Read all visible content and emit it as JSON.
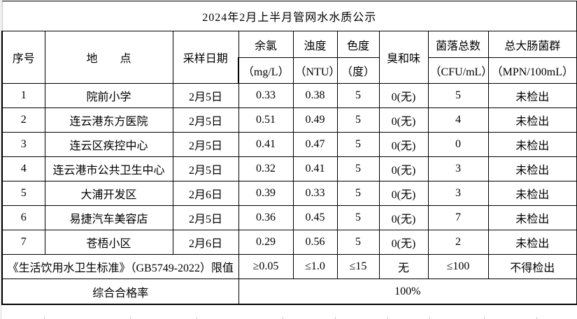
{
  "title": "2024年2月上半月管网水水质公示",
  "columns": [
    {
      "label": "序号"
    },
    {
      "label": "地　　点"
    },
    {
      "label": "采样日期"
    },
    {
      "label": "余氯",
      "unit": "（mg/L）"
    },
    {
      "label": "浊度",
      "unit": "（NTU）"
    },
    {
      "label": "色度",
      "unit": "（度）"
    },
    {
      "label": "臭和味"
    },
    {
      "label": "菌落总数",
      "unit": "（CFU/mL）"
    },
    {
      "label": "总大肠菌群",
      "unit": "（MPN/100mL）"
    }
  ],
  "rows": [
    {
      "no": "1",
      "location": "院前小学",
      "date": "2月5日",
      "chlorine": "0.33",
      "turbidity": "0.38",
      "color": "5",
      "odor": "0(无)",
      "bacteria": "5",
      "coliform": "未检出"
    },
    {
      "no": "2",
      "location": "连云港东方医院",
      "date": "2月5日",
      "chlorine": "0.51",
      "turbidity": "0.49",
      "color": "5",
      "odor": "0(无)",
      "bacteria": "4",
      "coliform": "未检出"
    },
    {
      "no": "3",
      "location": "连云区疾控中心",
      "date": "2月5日",
      "chlorine": "0.41",
      "turbidity": "0.47",
      "color": "5",
      "odor": "0(无)",
      "bacteria": "0",
      "coliform": "未检出"
    },
    {
      "no": "4",
      "location": "连云港市公共卫生中心",
      "date": "2月5日",
      "chlorine": "0.32",
      "turbidity": "0.41",
      "color": "5",
      "odor": "0(无)",
      "bacteria": "3",
      "coliform": "未检出"
    },
    {
      "no": "5",
      "location": "大浦开发区",
      "date": "2月6日",
      "chlorine": "0.39",
      "turbidity": "0.33",
      "color": "5",
      "odor": "0(无)",
      "bacteria": "3",
      "coliform": "未检出"
    },
    {
      "no": "6",
      "location": "易捷汽车美容店",
      "date": "2月5日",
      "chlorine": "0.36",
      "turbidity": "0.45",
      "color": "5",
      "odor": "0(无)",
      "bacteria": "7",
      "coliform": "未检出"
    },
    {
      "no": "7",
      "location": "苍梧小区",
      "date": "2月6日",
      "chlorine": "0.29",
      "turbidity": "0.56",
      "color": "5",
      "odor": "0(无)",
      "bacteria": "2",
      "coliform": "未检出"
    }
  ],
  "limit_row": {
    "label": "《生活饮用水卫生标准》（GB5749-2022）限值",
    "chlorine": "≥0.05",
    "turbidity": "≤1.0",
    "color": "≤15",
    "odor": "无",
    "bacteria": "≤100",
    "coliform": "不得检出"
  },
  "rate_row": {
    "label": "综合合格率",
    "value": "100%"
  }
}
